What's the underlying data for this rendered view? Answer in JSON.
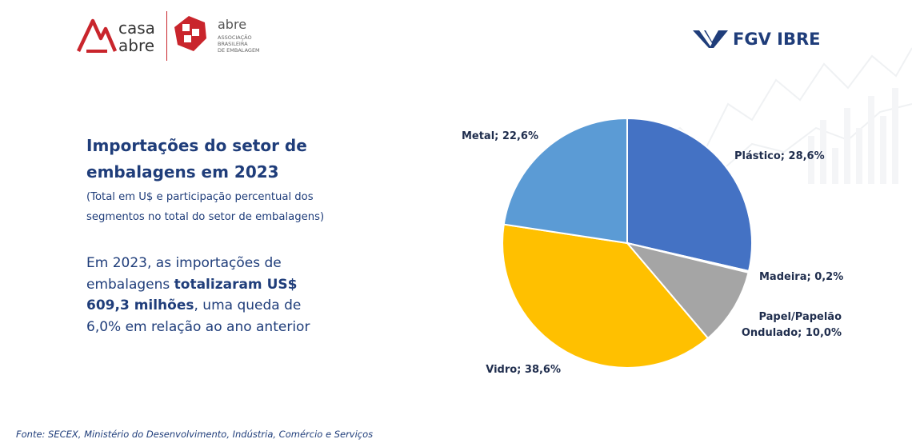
{
  "header": {
    "logo_casa_top": "casa",
    "logo_casa_bottom": "abre",
    "logo_abre_name": "abre",
    "logo_abre_line1": "ASSOCIAÇÃO",
    "logo_abre_line2": "BRASILEIRA",
    "logo_abre_line3": "DE EMBALAGEM",
    "logo_fgv": "FGV IBRE"
  },
  "main": {
    "title_line1": "Importações do setor de",
    "title_line2": "embalagens em 2023",
    "subtitle_line1": "(Total em U$ e participação percentual dos",
    "subtitle_line2": "segmentos no total do setor de embalagens)",
    "body_part1": "Em 2023, as importações de embalagens ",
    "body_bold": "totalizaram US$ 609,3 milhões",
    "body_part2": ", uma queda de 6,0% em relação ao ano anterior"
  },
  "chart_data": {
    "type": "pie",
    "title": "",
    "slices": [
      {
        "name": "Plástico",
        "value": 28.6,
        "label": "Plástico; 28,6%",
        "color": "#4472c4"
      },
      {
        "name": "Madeira",
        "value": 0.2,
        "label": "Madeira; 0,2%",
        "color": "#ed7d31"
      },
      {
        "name": "Papel/Papelão Ondulado",
        "value": 10.0,
        "label_lines": [
          "Papel/Papelão",
          "Ondulado; 10,0%"
        ],
        "color": "#a5a5a5"
      },
      {
        "name": "Vidro",
        "value": 38.6,
        "label": "Vidro; 38,6%",
        "color": "#ffc000"
      },
      {
        "name": "Metal",
        "value": 22.6,
        "label": "Metal; 22,6%",
        "color": "#5b9bd5"
      }
    ],
    "start": "12 o'clock",
    "direction": "clockwise"
  },
  "footer": {
    "source": "Fonte: SECEX, Ministério do Desenvolvimento, Indústria, Comércio e Serviços"
  }
}
